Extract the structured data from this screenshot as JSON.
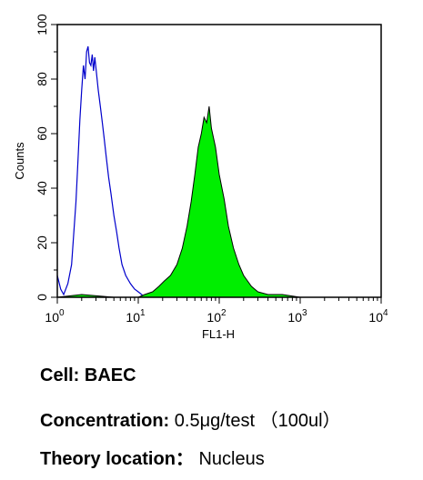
{
  "chart_data": {
    "type": "histogram",
    "title": "",
    "xlabel": "FL1-H",
    "ylabel": "Counts",
    "xscale": "log",
    "xlim": [
      1,
      10000
    ],
    "ylim": [
      0,
      100
    ],
    "x_ticks": [
      {
        "base": "10",
        "exp": "0",
        "value": 1
      },
      {
        "base": "10",
        "exp": "1",
        "value": 10
      },
      {
        "base": "10",
        "exp": "2",
        "value": 100
      },
      {
        "base": "10",
        "exp": "3",
        "value": 1000
      },
      {
        "base": "10",
        "exp": "4",
        "value": 10000
      }
    ],
    "y_ticks": [
      "0",
      "20",
      "40",
      "60",
      "80",
      "100"
    ],
    "grid": false,
    "series": [
      {
        "style": "outline",
        "color": "#0000cc",
        "x": [
          1.0,
          1.1,
          1.2,
          1.35,
          1.5,
          1.6,
          1.7,
          1.8,
          1.9,
          2.0,
          2.1,
          2.2,
          2.3,
          2.4,
          2.5,
          2.6,
          2.7,
          2.8,
          2.9,
          3.0,
          3.2,
          3.4,
          3.6,
          3.8,
          4.0,
          4.3,
          4.6,
          5.0,
          5.4,
          5.8,
          6.3,
          7.0,
          8.0,
          9.0,
          10.0,
          11.0,
          12.0
        ],
        "y": [
          8,
          3,
          1,
          5,
          12,
          24,
          35,
          50,
          65,
          76,
          85,
          80,
          90,
          92,
          86,
          85,
          89,
          83,
          88,
          84,
          76,
          70,
          64,
          58,
          52,
          44,
          38,
          30,
          24,
          18,
          12,
          8,
          5,
          3,
          2,
          1,
          0
        ]
      },
      {
        "style": "filled",
        "color": "#00ee00",
        "x": [
          1.0,
          2.0,
          5.0,
          10.0,
          12.0,
          15.0,
          18.0,
          21.0,
          25.0,
          30.0,
          35.0,
          40.0,
          45.0,
          50.0,
          55.0,
          60.0,
          65.0,
          70.0,
          75.0,
          80.0,
          90.0,
          100.0,
          115.0,
          130.0,
          150.0,
          175.0,
          200.0,
          250.0,
          300.0,
          400.0,
          600.0,
          1000.0,
          3000.0,
          10000.0
        ],
        "y": [
          0,
          1,
          0,
          0,
          1,
          2,
          4,
          6,
          8,
          12,
          18,
          26,
          35,
          45,
          55,
          60,
          66,
          64,
          70,
          62,
          55,
          45,
          36,
          26,
          18,
          12,
          8,
          4,
          2,
          1,
          1,
          0,
          0,
          0
        ]
      }
    ]
  },
  "caption": {
    "cell_key": "Cell:",
    "cell_value": "BAEC",
    "concentration_key": "Concentration:",
    "concentration_value": "0.5μg/test （100ul）",
    "location_key": "Theory location：",
    "location_value": "Nucleus"
  }
}
